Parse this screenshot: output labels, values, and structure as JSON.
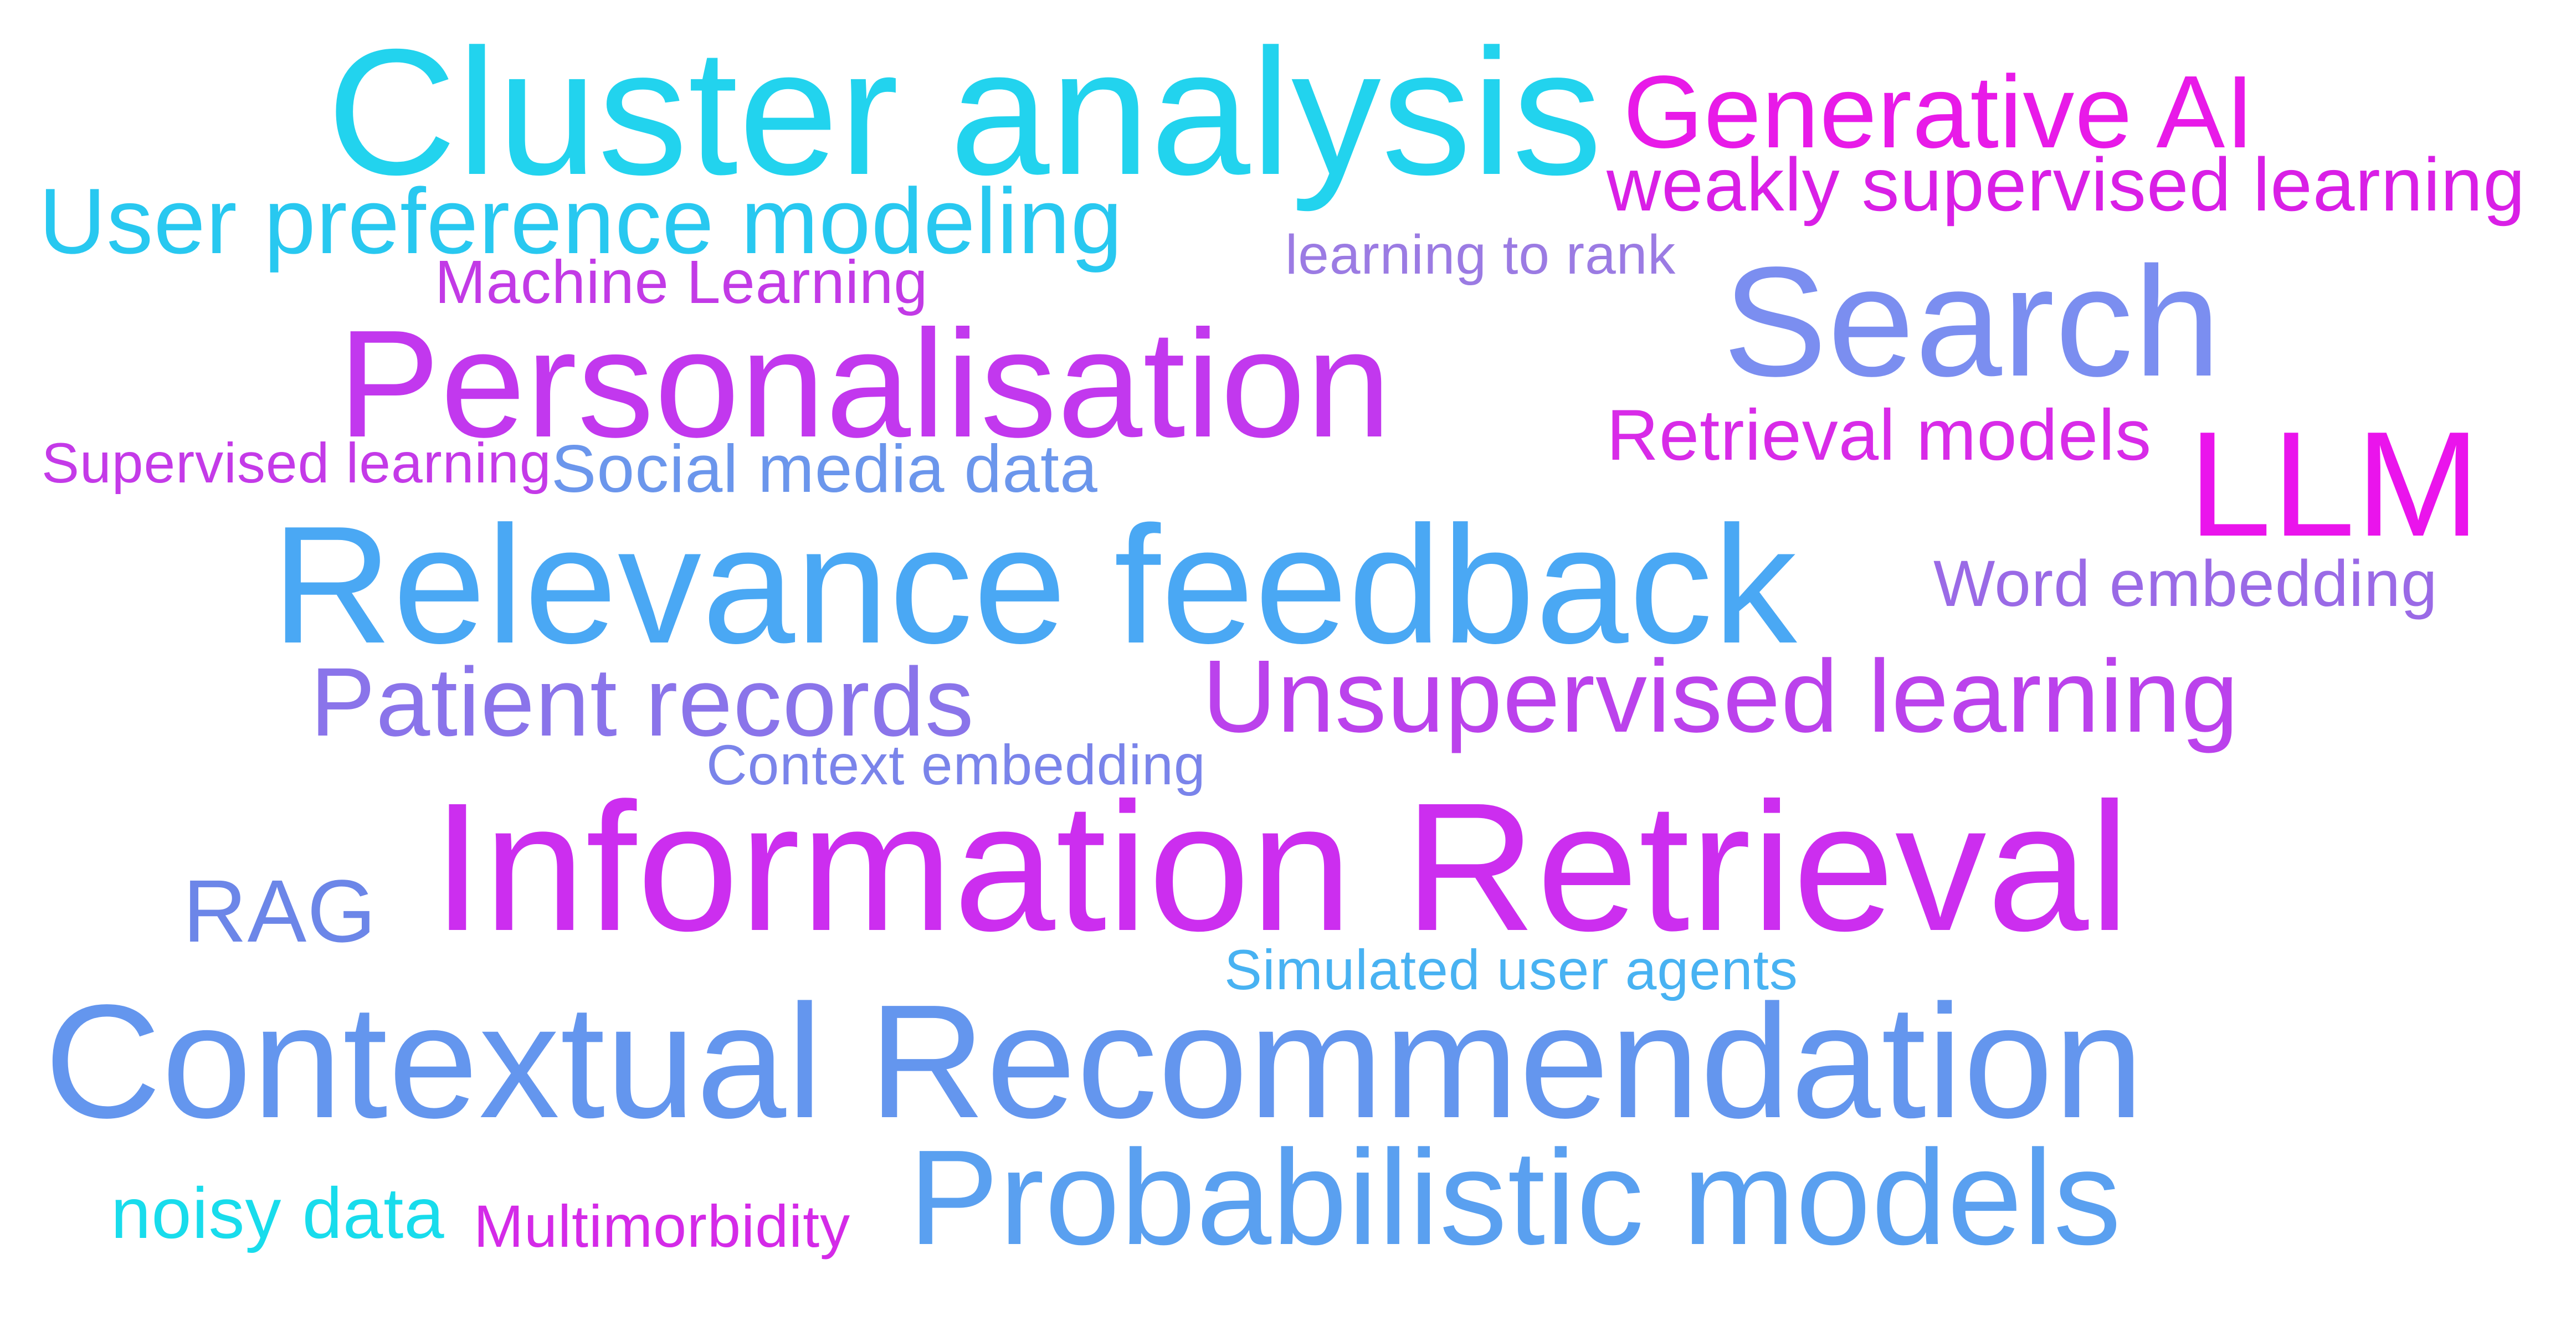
{
  "words": [
    {
      "text": "Cluster analysis",
      "color": "#22d3ee"
    },
    {
      "text": "Generative AI",
      "color": "#e81ae8"
    },
    {
      "text": "weakly supervised learning",
      "color": "#d91fe6"
    },
    {
      "text": "User preference modeling",
      "color": "#28c8f0"
    },
    {
      "text": "learning to rank",
      "color": "#9b7be3"
    },
    {
      "text": "Machine Learning",
      "color": "#c23ae6"
    },
    {
      "text": "Search",
      "color": "#7b8ef0"
    },
    {
      "text": "Personalisation",
      "color": "#c238ee"
    },
    {
      "text": "Retrieval models",
      "color": "#d82be8"
    },
    {
      "text": "Supervised learning",
      "color": "#c43ae8"
    },
    {
      "text": "Social media data",
      "color": "#6b96ec"
    },
    {
      "text": "LLM",
      "color": "#ea14ec"
    },
    {
      "text": "Relevance feedback",
      "color": "#4aa8f4"
    },
    {
      "text": "Word embedding",
      "color": "#9a6ae6"
    },
    {
      "text": "Patient records",
      "color": "#8a74ea"
    },
    {
      "text": "Unsupervised learning",
      "color": "#bb42ec"
    },
    {
      "text": "Context embedding",
      "color": "#7a84ea"
    },
    {
      "text": "RAG",
      "color": "#6c86e8"
    },
    {
      "text": "Information Retrieval",
      "color": "#cc2eef"
    },
    {
      "text": "Simulated user agents",
      "color": "#48b2f2"
    },
    {
      "text": "Contextual Recommendation",
      "color": "#6496ee"
    },
    {
      "text": "noisy data",
      "color": "#18dcec"
    },
    {
      "text": "Multimorbidity",
      "color": "#d42ae8"
    },
    {
      "text": "Probabilistic models",
      "color": "#5aa0f0"
    }
  ]
}
